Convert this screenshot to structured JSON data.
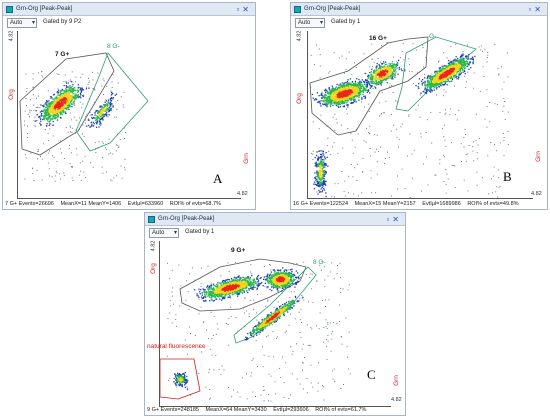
{
  "panels": {
    "A": {
      "title": "Grn-Org [Peak-Peak]",
      "dropdown": "Auto",
      "gated": "Gated by 9 P2",
      "y_axis": "Org",
      "x_axis": "Grn",
      "scale_max_y": "4.82",
      "scale_max_x": "4.82",
      "gate_black": "7 G+",
      "gate_green": "8 G-",
      "letter": "A",
      "status": [
        "7 G+ Events=26696",
        "MeanX=11 MeanY=1406",
        "EvtIµl=633960",
        "ROI% of evts=68.7%"
      ]
    },
    "B": {
      "title": "Grn-Org [Peak-Peak]",
      "dropdown": "Auto",
      "gated": "Gated by 1",
      "y_axis": "Org",
      "x_axis": "Grn",
      "scale_max_y": "4.82",
      "scale_max_x": "4.82",
      "gate_black": "16 G+",
      "gate_green": "G-",
      "letter": "B",
      "status": [
        "16 G+ Events=122524",
        "MeanX=15 MeanY=2157",
        "EvtIµl=1689986",
        "ROI% of evts=49.8%"
      ]
    },
    "C": {
      "title": "Grn-Org [Peak-Peak]",
      "dropdown": "Auto",
      "gated": "Gated by 1",
      "y_axis": "Org",
      "x_axis": "Grn",
      "scale_max_y": "4.82",
      "scale_max_x": "4.82",
      "gate_black": "9 G+",
      "gate_green": "8 G-",
      "gate_red": "natural fluorescence",
      "letter": "C",
      "status": [
        "9 G+ Events=248185",
        "MeanX=64 MeanY=3430",
        "EvtIµl=293606",
        "ROI% of evts=61.7%"
      ]
    }
  },
  "colors": {
    "titlebar": "#dfe8f3",
    "density_low": "#1f3fb8",
    "density_mid": "#27b84a",
    "density_high": "#f2d41a",
    "density_peak": "#e8261a",
    "gate_positive": "#555555",
    "gate_negative": "#2aa070",
    "gate_natural": "#e01818"
  },
  "icons": [
    "window-icon",
    "restore-icon",
    "close-icon",
    "dropdown-chevron-icon"
  ]
}
